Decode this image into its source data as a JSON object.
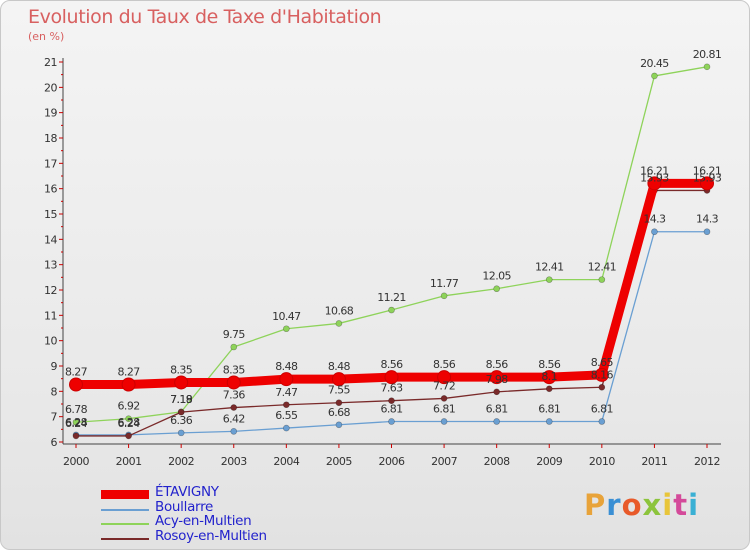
{
  "header": {
    "title": "Evolution du Taux de Taxe d'Habitation",
    "unit": "(en %)"
  },
  "logo": {
    "text": "Proxiti",
    "letter_colors": [
      "#e8a33a",
      "#3a8fd4",
      "#e85a2a",
      "#8cc43c",
      "#e8c53a",
      "#d44a9a",
      "#3ab0d4"
    ]
  },
  "chart_data": {
    "type": "line",
    "title": "Evolution du Taux de Taxe d'Habitation",
    "ylabel": "(en %)",
    "xlabel": "",
    "x": [
      "2000",
      "2001",
      "2002",
      "2003",
      "2004",
      "2005",
      "2006",
      "2007",
      "2008",
      "2009",
      "2010",
      "2011",
      "2012"
    ],
    "ylim": [
      6,
      21
    ],
    "yticks": [
      6,
      7,
      8,
      9,
      10,
      11,
      12,
      13,
      14,
      15,
      16,
      17,
      18,
      19,
      20,
      21
    ],
    "grid": false,
    "legend_position": "bottom-left",
    "series": [
      {
        "name": "ÉTAVIGNY",
        "color": "#ee0000",
        "values": [
          8.27,
          8.27,
          8.35,
          8.35,
          8.48,
          8.48,
          8.56,
          8.56,
          8.56,
          8.56,
          8.65,
          16.21,
          16.21
        ],
        "labels": [
          "8.27",
          "8.27",
          "8.35",
          "8.35",
          "8.48",
          "8.48",
          "8.56",
          "8.56",
          "8.56",
          "8.56",
          "8.65",
          "16.21",
          "16.21"
        ]
      },
      {
        "name": "Boullarre",
        "color": "#6a9fd2",
        "values": [
          6.28,
          6.28,
          6.36,
          6.42,
          6.55,
          6.68,
          6.81,
          6.81,
          6.81,
          6.81,
          6.81,
          14.3,
          14.3
        ],
        "labels": [
          "6.28",
          "6.28",
          "6.36",
          "6.42",
          "6.55",
          "6.68",
          "6.81",
          "6.81",
          "6.81",
          "6.81",
          "6.81",
          "14.3",
          "14.3"
        ]
      },
      {
        "name": "Acy-en-Multien",
        "color": "#8ed35a",
        "values": [
          6.78,
          6.92,
          7.19,
          9.75,
          10.47,
          10.68,
          11.21,
          11.77,
          12.05,
          12.41,
          12.41,
          20.45,
          20.81
        ],
        "labels": [
          "6.78",
          "6.92",
          "7.19",
          "9.75",
          "10.47",
          "10.68",
          "11.21",
          "11.77",
          "12.05",
          "12.41",
          "12.41",
          "20.45",
          "20.81"
        ]
      },
      {
        "name": "Rosoy-en-Multien",
        "color": "#7a2a2a",
        "values": [
          6.24,
          6.24,
          7.18,
          7.36,
          7.47,
          7.55,
          7.63,
          7.72,
          7.98,
          8.1,
          8.16,
          15.93,
          15.93
        ],
        "labels": [
          "6.24",
          "6.24",
          "7.18",
          "7.36",
          "7.47",
          "7.55",
          "7.63",
          "7.72",
          "7.98",
          "8.1",
          "8.16",
          "15.93",
          "15.93"
        ]
      }
    ]
  }
}
